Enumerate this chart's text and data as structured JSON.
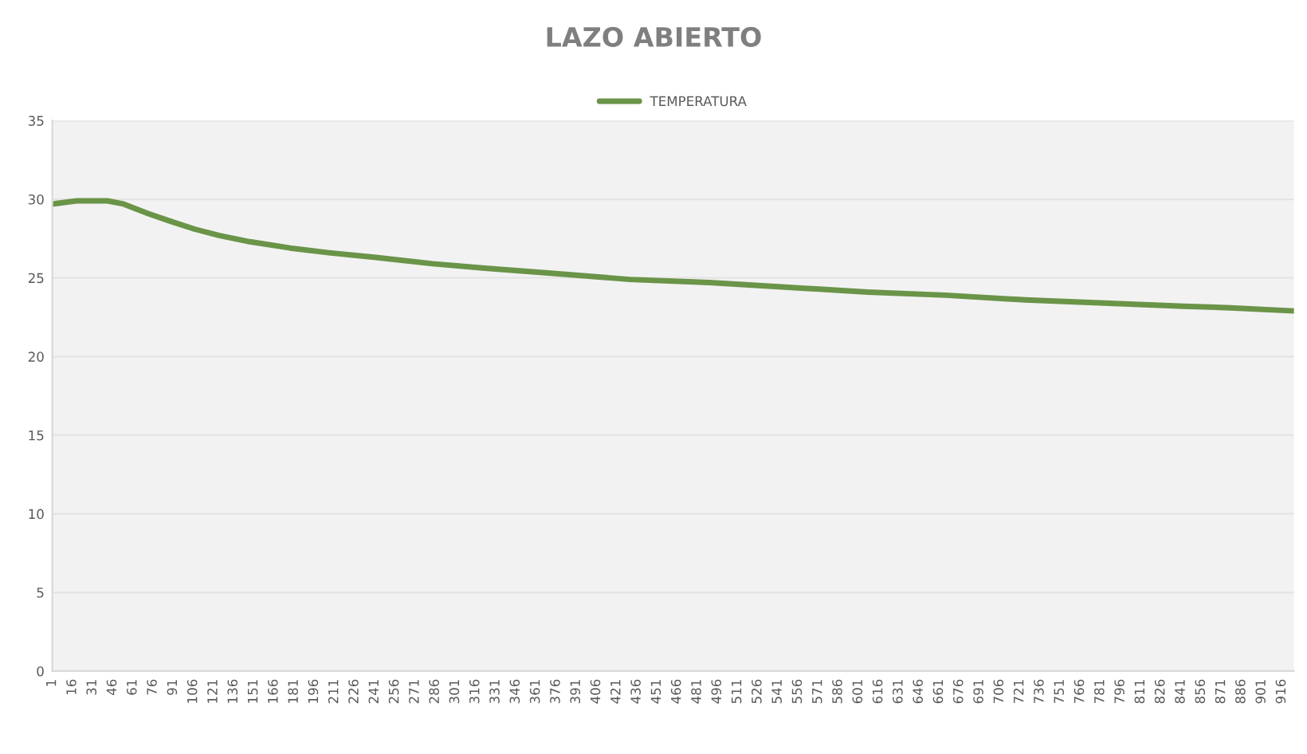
{
  "chart_data": {
    "type": "line",
    "title": "LAZO ABIERTO",
    "x": [
      1,
      19,
      42,
      54,
      72,
      89,
      107,
      125,
      148,
      178,
      207,
      242,
      284,
      325,
      372,
      431,
      490,
      549,
      608,
      666,
      725,
      784,
      843,
      878,
      925
    ],
    "series": [
      {
        "name": "TEMPERATURA",
        "color": "#6a9448",
        "values": [
          29.7,
          29.9,
          29.9,
          29.7,
          29.1,
          28.6,
          28.1,
          27.7,
          27.3,
          26.9,
          26.6,
          26.3,
          25.9,
          25.6,
          25.3,
          24.9,
          24.7,
          24.4,
          24.1,
          23.9,
          23.6,
          23.4,
          23.2,
          23.1,
          22.9
        ]
      }
    ],
    "xlim": [
      1,
      925
    ],
    "xticks": [
      1,
      16,
      31,
      46,
      61,
      76,
      91,
      106,
      121,
      136,
      151,
      166,
      181,
      196,
      211,
      226,
      241,
      256,
      271,
      286,
      301,
      316,
      331,
      346,
      361,
      376,
      391,
      406,
      421,
      436,
      451,
      466,
      481,
      496,
      511,
      526,
      541,
      556,
      571,
      586,
      601,
      616,
      631,
      646,
      661,
      676,
      691,
      706,
      721,
      736,
      751,
      766,
      781,
      796,
      811,
      826,
      841,
      856,
      871,
      886,
      901,
      916
    ],
    "ylim": [
      0,
      35
    ],
    "yticks": [
      0,
      5,
      10,
      15,
      20,
      25,
      30,
      35
    ],
    "grid": "y",
    "legend": "top",
    "marker": "none",
    "line_style": "solid"
  }
}
